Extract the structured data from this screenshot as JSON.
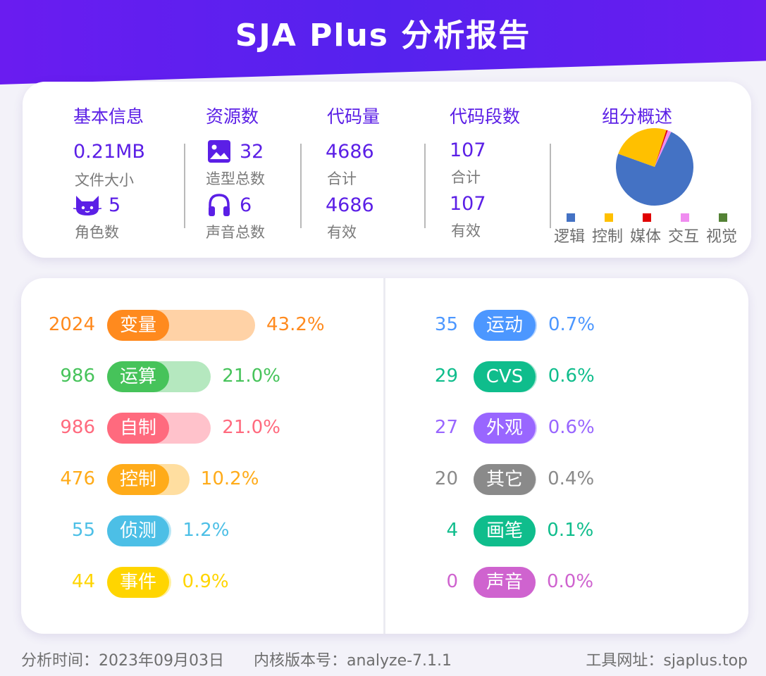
{
  "header": {
    "title": "SJA Plus 分析报告"
  },
  "summary": {
    "basic": {
      "heading": "基本信息",
      "file_size": "0.21MB",
      "file_size_label": "文件大小",
      "sprites": "5",
      "sprites_label": "角色数"
    },
    "assets": {
      "heading": "资源数",
      "costumes": "32",
      "costumes_label": "造型总数",
      "sounds": "6",
      "sounds_label": "声音总数"
    },
    "code": {
      "heading": "代码量",
      "total": "4686",
      "total_label": "合计",
      "valid": "4686",
      "valid_label": "有效"
    },
    "scripts": {
      "heading": "代码段数",
      "total": "107",
      "total_label": "合计",
      "valid": "107",
      "valid_label": "有效"
    },
    "composition": {
      "heading": "组分概述",
      "legend": [
        {
          "label": "逻辑",
          "color": "#4472c4"
        },
        {
          "label": "控制",
          "color": "#ffc000"
        },
        {
          "label": "媒体",
          "color": "#e00000"
        },
        {
          "label": "交互",
          "color": "#f08cf0"
        },
        {
          "label": "视觉",
          "color": "#548235"
        }
      ]
    }
  },
  "chart_data": {
    "type": "pie",
    "categories": [
      "逻辑",
      "控制",
      "媒体",
      "交互",
      "视觉"
    ],
    "values": [
      73.5,
      24.4,
      0.6,
      1.5,
      0.0
    ],
    "colors": [
      "#4472c4",
      "#ffc000",
      "#e00000",
      "#f08cf0",
      "#548235"
    ]
  },
  "blocks_left": [
    {
      "count": "2024",
      "label": "变量",
      "percent": "43.2%",
      "value": 43.2,
      "color": "#ff8a1e",
      "track": "#ffd2a6"
    },
    {
      "count": "986",
      "label": "运算",
      "percent": "21.0%",
      "value": 21.0,
      "color": "#46c35a",
      "track": "#b5e8bf"
    },
    {
      "count": "986",
      "label": "自制",
      "percent": "21.0%",
      "value": 21.0,
      "color": "#ff6a7e",
      "track": "#ffc2cb"
    },
    {
      "count": "476",
      "label": "控制",
      "percent": "10.2%",
      "value": 10.2,
      "color": "#ffab19",
      "track": "#ffdea0"
    },
    {
      "count": "55",
      "label": "侦测",
      "percent": "1.2%",
      "value": 1.2,
      "color": "#4cbfe6",
      "track": "#b8e6f5"
    },
    {
      "count": "44",
      "label": "事件",
      "percent": "0.9%",
      "value": 0.9,
      "color": "#ffd500",
      "track": "#fff0a0"
    }
  ],
  "blocks_right": [
    {
      "count": "35",
      "label": "运动",
      "percent": "0.7%",
      "value": 0.7,
      "color": "#4c97ff",
      "track": "#b7d5ff"
    },
    {
      "count": "29",
      "label": "CVS",
      "percent": "0.6%",
      "value": 0.6,
      "color": "#0fbd8c",
      "track": "#a7e6d3"
    },
    {
      "count": "27",
      "label": "外观",
      "percent": "0.6%",
      "value": 0.6,
      "color": "#9966ff",
      "track": "#d3c0ff"
    },
    {
      "count": "20",
      "label": "其它",
      "percent": "0.4%",
      "value": 0.4,
      "color": "#8a8a8a",
      "track": "#d0d0d0"
    },
    {
      "count": "4",
      "label": "画笔",
      "percent": "0.1%",
      "value": 0.1,
      "color": "#0fbd8c",
      "track": "#a7e6d3"
    },
    {
      "count": "0",
      "label": "声音",
      "percent": "0.0%",
      "value": 0.0,
      "color": "#cf63cf",
      "track": "#ebbdeb"
    }
  ],
  "footer": {
    "date": "分析时间：2023年09月03日",
    "version": "内核版本号：analyze-7.1.1",
    "site": "工具网址：sjaplus.top"
  }
}
